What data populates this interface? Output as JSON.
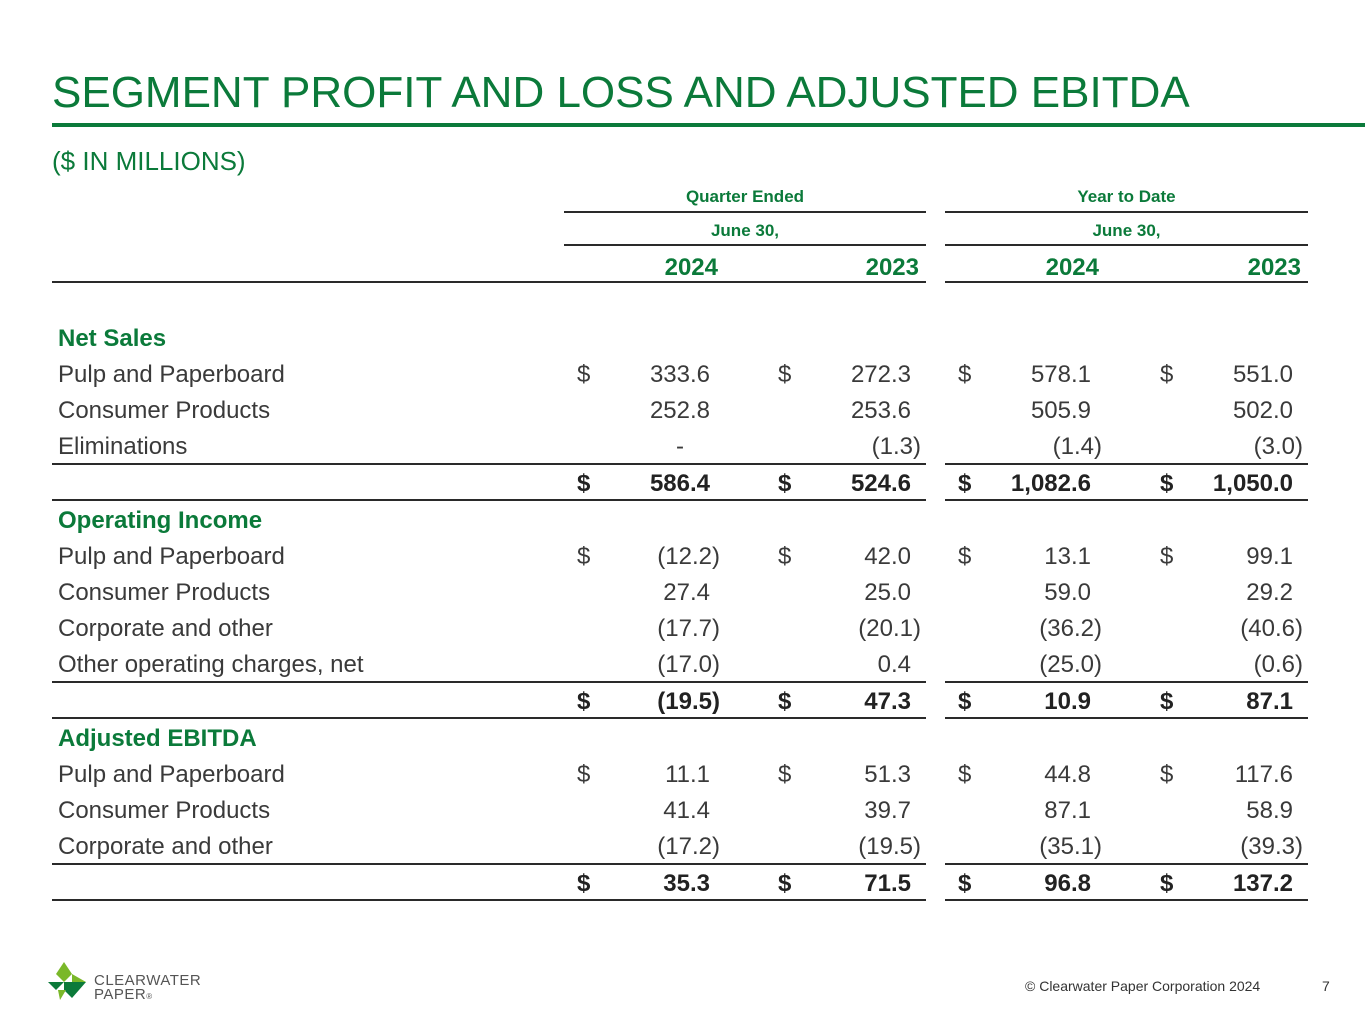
{
  "title": "SEGMENT PROFIT AND LOSS AND ADJUSTED EBITDA",
  "subtitle": "($ IN MILLIONS)",
  "headers": {
    "quarter_label": "Quarter Ended",
    "ytd_label": "Year to Date",
    "quarter_date": "June 30,",
    "ytd_date": "June 30,",
    "years": [
      "2024",
      "2023",
      "2024",
      "2023"
    ]
  },
  "net_sales": {
    "heading": "Net Sales",
    "rows": [
      {
        "label": "Pulp and Paperboard",
        "dollar": "$",
        "values": [
          "333.6",
          "272.3",
          "578.1",
          "551.0"
        ]
      },
      {
        "label": "Consumer Products",
        "dollar": "",
        "values": [
          "252.8",
          "253.6",
          "505.9",
          "502.0"
        ]
      },
      {
        "label": "Eliminations",
        "dollar": "",
        "values": [
          "-",
          "(1.3)",
          "(1.4)",
          "(3.0)"
        ]
      }
    ],
    "total": {
      "dollar": "$",
      "values": [
        "586.4",
        "524.6",
        "1,082.6",
        "1,050.0"
      ]
    }
  },
  "operating_income": {
    "heading": "Operating Income",
    "rows": [
      {
        "label": "Pulp and Paperboard",
        "dollar": "$",
        "values": [
          "(12.2)",
          "42.0",
          "13.1",
          "99.1"
        ]
      },
      {
        "label": "Consumer Products",
        "dollar": "",
        "values": [
          "27.4",
          "25.0",
          "59.0",
          "29.2"
        ]
      },
      {
        "label": "Corporate and other",
        "dollar": "",
        "values": [
          "(17.7)",
          "(20.1)",
          "(36.2)",
          "(40.6)"
        ]
      },
      {
        "label": "Other operating charges, net",
        "dollar": "",
        "values": [
          "(17.0)",
          "0.4",
          "(25.0)",
          "(0.6)"
        ]
      }
    ],
    "total": {
      "dollar": "$",
      "values": [
        "(19.5)",
        "47.3",
        "10.9",
        "87.1"
      ]
    }
  },
  "adjusted_ebitda": {
    "heading": "Adjusted EBITDA",
    "rows": [
      {
        "label": "Pulp and Paperboard",
        "dollar": "$",
        "values": [
          "11.1",
          "51.3",
          "44.8",
          "117.6"
        ]
      },
      {
        "label": "Consumer Products",
        "dollar": "",
        "values": [
          "41.4",
          "39.7",
          "87.1",
          "58.9"
        ]
      },
      {
        "label": "Corporate and other",
        "dollar": "",
        "values": [
          "(17.2)",
          "(19.5)",
          "(35.1)",
          "(39.3)"
        ]
      }
    ],
    "total": {
      "dollar": "$",
      "values": [
        "35.3",
        "71.5",
        "96.8",
        "137.2"
      ]
    }
  },
  "footer": {
    "copyright": "© Clearwater Paper Corporation 2024",
    "page_number": "7",
    "logo_line1": "CLEARWATER",
    "logo_line2": "PAPER",
    "logo_reg": "®"
  },
  "colors": {
    "brand_green": "#0b7a3a",
    "logo_light_green": "#7ab829"
  }
}
